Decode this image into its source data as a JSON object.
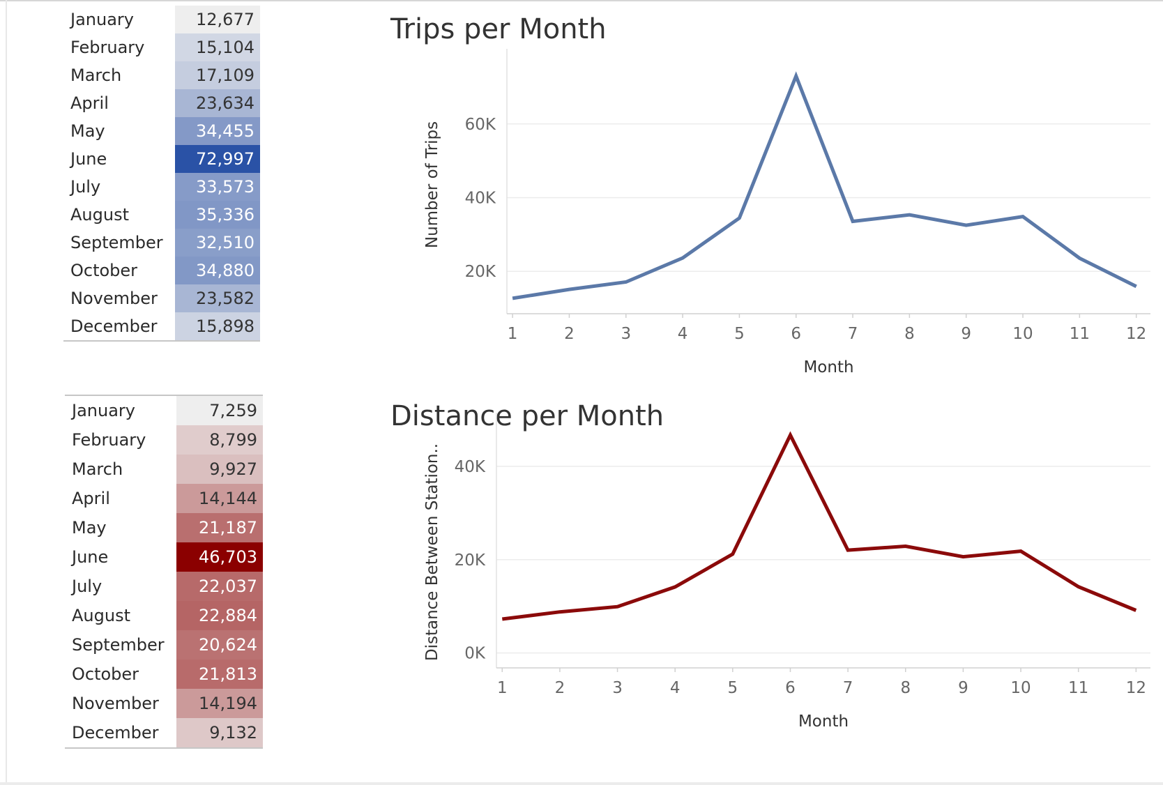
{
  "months": [
    "January",
    "February",
    "March",
    "April",
    "May",
    "June",
    "July",
    "August",
    "September",
    "October",
    "November",
    "December"
  ],
  "trips_table": [
    "12,677",
    "15,104",
    "17,109",
    "23,634",
    "34,455",
    "72,997",
    "33,573",
    "35,336",
    "32,510",
    "34,880",
    "23,582",
    "15,898"
  ],
  "distance_table": [
    "7,259",
    "8,799",
    "9,927",
    "14,144",
    "21,187",
    "46,703",
    "22,037",
    "22,884",
    "20,624",
    "21,813",
    "14,194",
    "9,132"
  ],
  "colors": {
    "trips_line": "#5b79a8",
    "distance_line": "#8b0a0a",
    "blue_dark": "#2a52a6",
    "blue_light": "#eeeeee",
    "red_dark": "#8b0000",
    "red_light": "#eeeeee"
  },
  "chart_data": [
    {
      "type": "line",
      "title": "Trips per Month",
      "xlabel": "Month",
      "ylabel": "Number of Trips",
      "x": [
        1,
        2,
        3,
        4,
        5,
        6,
        7,
        8,
        9,
        10,
        11,
        12
      ],
      "values": [
        12677,
        15104,
        17109,
        23634,
        34455,
        72997,
        33573,
        35336,
        32510,
        34880,
        23582,
        15898
      ],
      "xlim": [
        0.9,
        12.25
      ],
      "ylim": [
        8500,
        78500
      ],
      "yticks": [
        20000,
        40000,
        60000
      ],
      "ytick_labels": [
        "20K",
        "40K",
        "60K"
      ],
      "grid": true,
      "color": "#5b79a8"
    },
    {
      "type": "line",
      "title": "Distance per Month",
      "xlabel": "Month",
      "ylabel": "Distance Between Station..",
      "x": [
        1,
        2,
        3,
        4,
        5,
        6,
        7,
        8,
        9,
        10,
        11,
        12
      ],
      "values": [
        7259,
        8799,
        9927,
        14144,
        21187,
        46703,
        22037,
        22884,
        20624,
        21813,
        14194,
        9132
      ],
      "xlim": [
        0.9,
        12.25
      ],
      "ylim": [
        -3200,
        50000
      ],
      "yticks": [
        0,
        20000,
        40000
      ],
      "ytick_labels": [
        "0K",
        "20K",
        "40K"
      ],
      "grid": true,
      "color": "#8b0a0a"
    }
  ]
}
